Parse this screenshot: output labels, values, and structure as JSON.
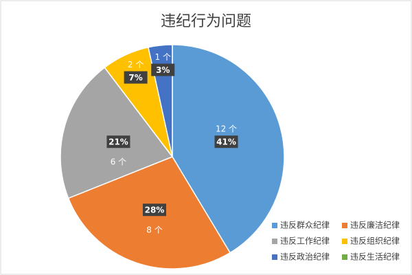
{
  "chart_data": {
    "type": "pie",
    "title": "违纪行为问题",
    "categories": [
      "违反群众纪律",
      "违反廉洁纪律",
      "违反工作纪律",
      "违反组织纪律",
      "违反政治纪律",
      "违反生活纪律"
    ],
    "values": [
      12,
      8,
      6,
      2,
      1,
      0
    ],
    "value_labels": [
      "12 个",
      "8 个",
      "6 个",
      "2 个",
      "1 个",
      null
    ],
    "percents": [
      41,
      28,
      21,
      7,
      3,
      0
    ],
    "percent_labels": [
      "41%",
      "28%",
      "21%",
      "7%",
      "3%",
      null
    ],
    "colors": [
      "#5b9bd5",
      "#ed7d31",
      "#a5a5a5",
      "#ffc000",
      "#4472c4",
      "#70ad47"
    ],
    "legend": "bottom-right"
  }
}
